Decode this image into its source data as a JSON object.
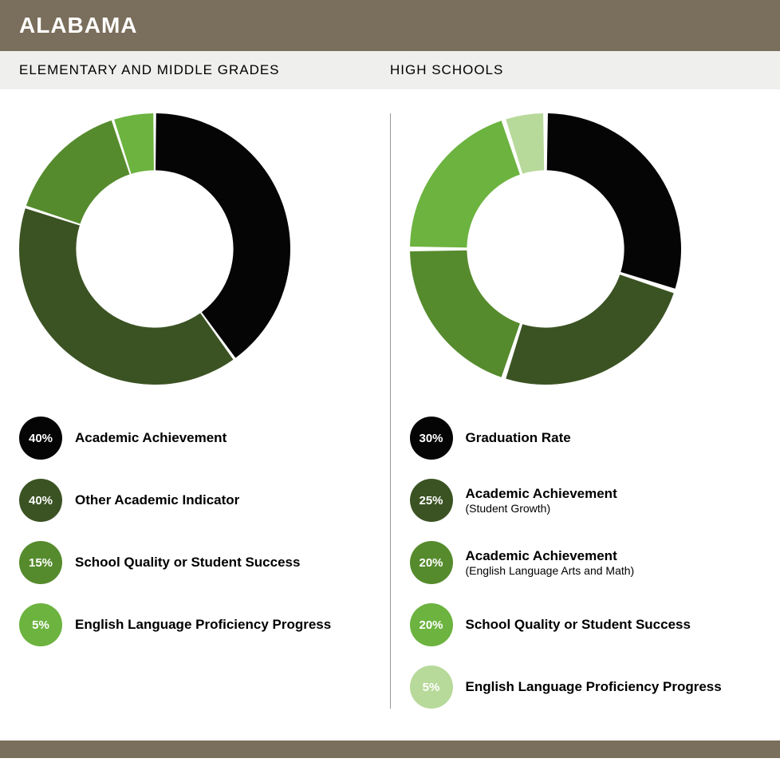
{
  "header": {
    "title": "ALABAMA"
  },
  "panels": [
    {
      "title": "ELEMENTARY AND MIDDLE GRADES",
      "donut": {
        "type": "donut",
        "size": 340,
        "inner_ratio": 0.58,
        "start_angle_deg": 0,
        "gap_deg": 1.2,
        "background_color": "#ffffff",
        "slices": [
          {
            "value": 40,
            "color": "#050505"
          },
          {
            "value": 40,
            "color": "#3b5323"
          },
          {
            "value": 15,
            "color": "#568b2d"
          },
          {
            "value": 5,
            "color": "#6cb33f"
          }
        ]
      },
      "legend": [
        {
          "pct": "40%",
          "color": "#050505",
          "label": "Academic Achievement"
        },
        {
          "pct": "40%",
          "color": "#3b5323",
          "label": "Other Academic Indicator"
        },
        {
          "pct": "15%",
          "color": "#568b2d",
          "label": "School Quality or Student Success"
        },
        {
          "pct": "5%",
          "color": "#6cb33f",
          "label": "English Language Proficiency Progress"
        }
      ]
    },
    {
      "title": "HIGH SCHOOLS",
      "donut": {
        "type": "donut",
        "size": 320,
        "inner_ratio": 0.58,
        "start_angle_deg": 0,
        "gap_deg": 2.0,
        "background_color": "#ffffff",
        "slices": [
          {
            "value": 30,
            "color": "#050505"
          },
          {
            "value": 25,
            "color": "#3b5323"
          },
          {
            "value": 20,
            "color": "#568b2d"
          },
          {
            "value": 20,
            "color": "#6cb33f"
          },
          {
            "value": 5,
            "color": "#b7d99a"
          }
        ]
      },
      "legend": [
        {
          "pct": "30%",
          "color": "#050505",
          "label": "Graduation Rate"
        },
        {
          "pct": "25%",
          "color": "#3b5323",
          "label": "Academic Achievement",
          "sub": "(Student Growth)"
        },
        {
          "pct": "20%",
          "color": "#568b2d",
          "label": "Academic Achievement",
          "sub": "(English Language Arts and Math)"
        },
        {
          "pct": "20%",
          "color": "#6cb33f",
          "label": "School Quality or Student Success"
        },
        {
          "pct": "5%",
          "color": "#b7d99a",
          "label": "English Language Proficiency Progress"
        }
      ]
    }
  ],
  "footer_color": "#7a6e5c"
}
